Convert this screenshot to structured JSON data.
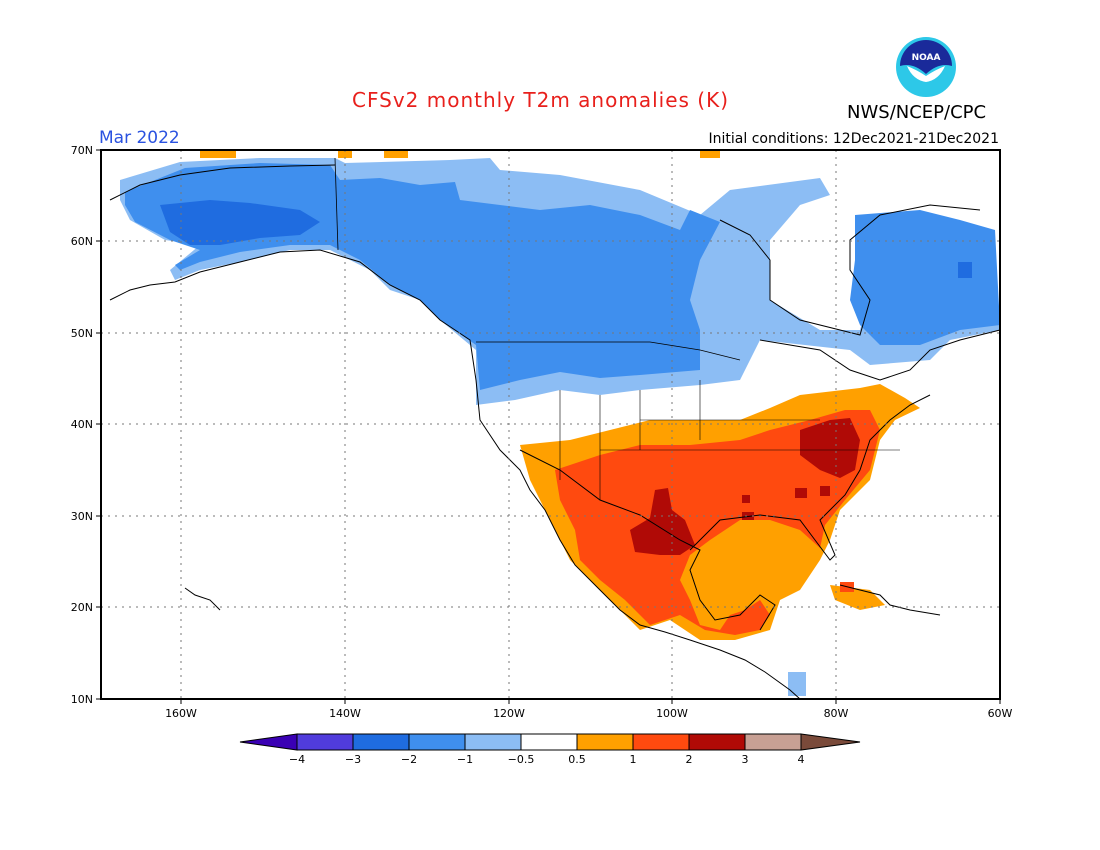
{
  "header": {
    "title": "CFSv2 monthly T2m anomalies (K)",
    "agency": "NWS/NCEP/CPC",
    "month": "Mar 2022",
    "initial_conditions": "Initial conditions: 12Dec2021-21Dec2021",
    "logo_text": "NOAA"
  },
  "axes": {
    "lat_labels": [
      "70N",
      "60N",
      "50N",
      "40N",
      "30N",
      "20N",
      "10N"
    ],
    "lon_labels": [
      "160W",
      "140W",
      "120W",
      "100W",
      "80W",
      "60W"
    ]
  },
  "colorbar": {
    "labels": [
      "-4",
      "-3",
      "-2",
      "-1",
      "-0.5",
      "0.5",
      "1",
      "2",
      "3",
      "4"
    ],
    "colors": [
      "#3a00b4",
      "#503cdc",
      "#1f6ce0",
      "#3f8fee",
      "#8cbdf4",
      "#ffffff",
      "#ffa000",
      "#ff4a0f",
      "#b00a06",
      "#c8a094",
      "#7a4a3a"
    ]
  },
  "colors": {
    "title": "#e8201c",
    "month": "#2a52e0"
  }
}
